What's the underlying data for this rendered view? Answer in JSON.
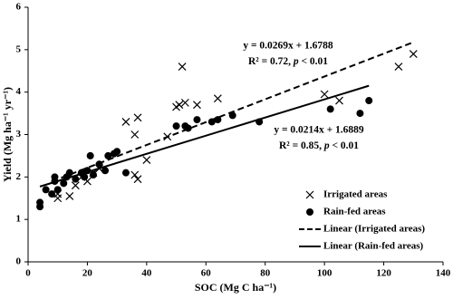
{
  "chart_data": {
    "type": "scatter",
    "x_label": "SOC (Mg C ha⁻¹)",
    "y_label": "Yield (Mg ha⁻¹ yr⁻¹)",
    "xlim": [
      0,
      140
    ],
    "xticks": [
      0,
      20,
      40,
      60,
      80,
      100,
      120,
      140
    ],
    "ylim": [
      0,
      6
    ],
    "yticks": [
      0,
      1,
      2,
      3,
      4,
      5,
      6
    ],
    "series": [
      {
        "name": "Irrigated areas",
        "marker": "x",
        "color": "#000000",
        "x": [
          10,
          10,
          14,
          16,
          18,
          20,
          22,
          24,
          33,
          36,
          37,
          36,
          37,
          40,
          47,
          50,
          51,
          52,
          53,
          57,
          64,
          100,
          105,
          125,
          130
        ],
        "values": [
          1.5,
          1.6,
          1.55,
          1.8,
          2.0,
          1.9,
          2.1,
          2.2,
          3.3,
          3.0,
          3.4,
          2.05,
          1.95,
          2.4,
          2.95,
          3.65,
          3.7,
          4.6,
          3.75,
          3.7,
          3.85,
          3.95,
          3.8,
          4.6,
          4.9
        ]
      },
      {
        "name": "Rain-fed areas",
        "marker": "circle",
        "color": "#000000",
        "x": [
          4,
          4,
          6,
          8,
          9,
          9,
          10,
          12,
          13,
          14,
          16,
          18,
          19,
          20,
          21,
          22,
          24,
          26,
          27,
          29,
          30,
          33,
          50,
          53,
          54,
          57,
          62,
          64,
          69,
          78,
          102,
          112,
          115
        ],
        "values": [
          1.3,
          1.4,
          1.7,
          1.6,
          2.0,
          1.9,
          1.7,
          1.85,
          2.0,
          2.1,
          1.95,
          2.1,
          2.0,
          2.15,
          2.5,
          2.05,
          2.3,
          2.15,
          2.5,
          2.55,
          2.6,
          2.1,
          3.2,
          3.2,
          3.15,
          3.35,
          3.3,
          3.35,
          3.45,
          3.3,
          3.6,
          3.5,
          3.8
        ]
      }
    ],
    "trendlines": [
      {
        "name": "Linear (Irrigated areas)",
        "dashed": true,
        "color": "#000000",
        "x": [
          8,
          130
        ],
        "values": [
          1.894,
          5.176
        ]
      },
      {
        "name": "Linear (Rain-fed areas)",
        "dashed": false,
        "color": "#000000",
        "x": [
          4,
          115
        ],
        "values": [
          1.775,
          4.15
        ]
      }
    ],
    "annotations": [
      {
        "equation": "y = 0.0269x + 1.6788",
        "r2": [
          "R² = 0.72, ",
          "p",
          " < 0.01"
        ]
      },
      {
        "equation": "y = 0.0214x + 1.6889",
        "r2": [
          "R² = 0.85, ",
          "p",
          " < 0.01"
        ]
      }
    ]
  }
}
